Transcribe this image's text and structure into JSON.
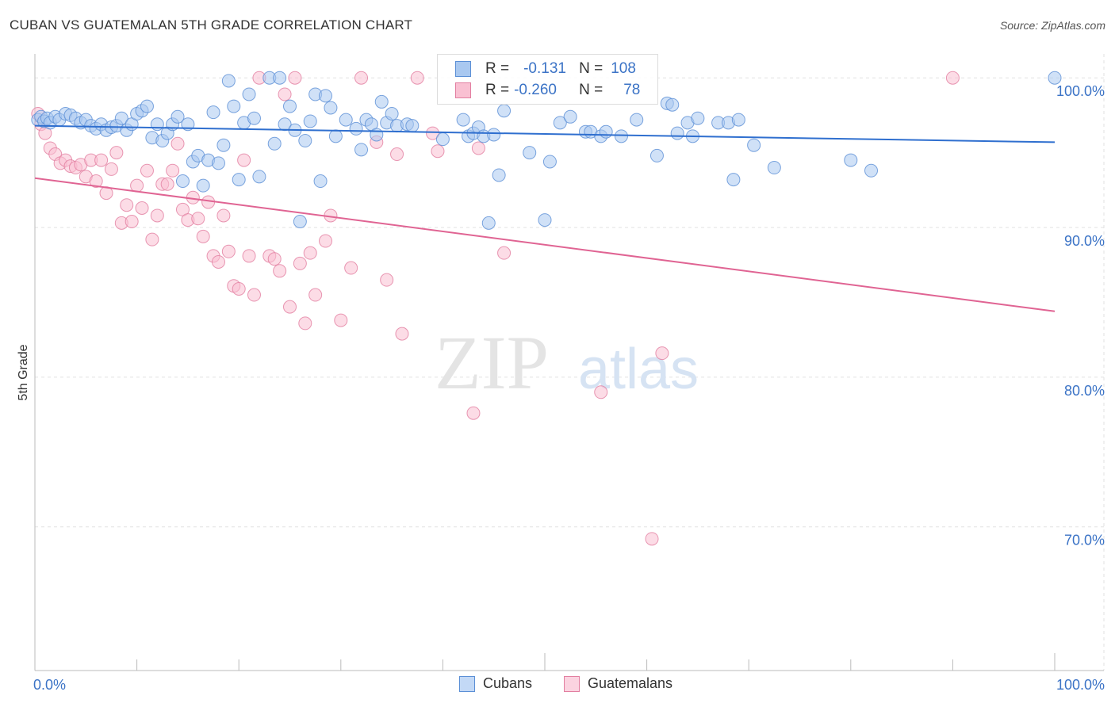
{
  "title": "CUBAN VS GUATEMALAN 5TH GRADE CORRELATION CHART",
  "source": "Source: ZipAtlas.com",
  "watermark": {
    "zip": "ZIP",
    "atlas": "atlas"
  },
  "legend": {
    "r_label": "R =",
    "n_label": "N =",
    "rows": [
      {
        "name": "Cubans",
        "r": "-0.131",
        "n": "108",
        "fill": "#a9c8f0",
        "stroke": "#5b8fd6"
      },
      {
        "name": "Guatemalans",
        "r": "-0.260",
        "n": "78",
        "fill": "#f9c0d2",
        "stroke": "#e27ea0"
      }
    ]
  },
  "chart_data": {
    "type": "scatter",
    "title": "CUBAN VS GUATEMALAN 5TH GRADE CORRELATION CHART",
    "xlabel": "",
    "ylabel": "5th Grade",
    "xlim": [
      0,
      100
    ],
    "ylim": [
      60.4,
      101.6
    ],
    "x_tick_labels": [
      "0.0%",
      "100.0%"
    ],
    "y_ticks": [
      100,
      90,
      80,
      70
    ],
    "y_tick_labels": [
      "100.0%",
      "90.0%",
      "80.0%",
      "70.0%"
    ],
    "grid": true,
    "series": [
      {
        "name": "Cubans",
        "color": "#5b8fd6",
        "fill": "#a9c8f0",
        "trend": {
          "x": [
            0,
            100
          ],
          "y": [
            96.8,
            95.7
          ]
        },
        "points": [
          [
            0.3,
            97.2
          ],
          [
            0.6,
            97.4
          ],
          [
            0.9,
            97.1
          ],
          [
            1.2,
            97.3
          ],
          [
            1.5,
            97.0
          ],
          [
            2.0,
            97.4
          ],
          [
            2.4,
            97.2
          ],
          [
            3.0,
            97.6
          ],
          [
            3.5,
            97.5
          ],
          [
            4.0,
            97.3
          ],
          [
            4.5,
            97.0
          ],
          [
            5.0,
            97.2
          ],
          [
            5.5,
            96.8
          ],
          [
            6.0,
            96.6
          ],
          [
            6.5,
            96.9
          ],
          [
            7.0,
            96.5
          ],
          [
            7.5,
            96.7
          ],
          [
            8.0,
            96.8
          ],
          [
            8.5,
            97.3
          ],
          [
            9.0,
            96.5
          ],
          [
            9.5,
            96.9
          ],
          [
            10.0,
            97.6
          ],
          [
            10.5,
            97.8
          ],
          [
            11.0,
            98.1
          ],
          [
            11.5,
            96.0
          ],
          [
            12.0,
            96.9
          ],
          [
            12.5,
            95.8
          ],
          [
            13.0,
            96.3
          ],
          [
            13.5,
            96.9
          ],
          [
            14.0,
            97.4
          ],
          [
            14.5,
            93.1
          ],
          [
            15.0,
            96.9
          ],
          [
            15.5,
            94.4
          ],
          [
            16.0,
            94.8
          ],
          [
            16.5,
            92.8
          ],
          [
            17.0,
            94.5
          ],
          [
            17.5,
            97.7
          ],
          [
            18.0,
            94.3
          ],
          [
            18.5,
            95.5
          ],
          [
            19.0,
            99.8
          ],
          [
            19.5,
            98.1
          ],
          [
            20.0,
            93.2
          ],
          [
            20.5,
            97.0
          ],
          [
            21.0,
            98.9
          ],
          [
            21.5,
            97.3
          ],
          [
            22.0,
            93.4
          ],
          [
            23.0,
            100.0
          ],
          [
            23.5,
            95.6
          ],
          [
            24.0,
            100.0
          ],
          [
            24.5,
            96.9
          ],
          [
            25.0,
            98.1
          ],
          [
            25.5,
            96.5
          ],
          [
            26.0,
            90.4
          ],
          [
            26.5,
            95.8
          ],
          [
            27.0,
            97.1
          ],
          [
            27.5,
            98.9
          ],
          [
            28.0,
            93.1
          ],
          [
            28.5,
            98.8
          ],
          [
            29.0,
            98.0
          ],
          [
            29.5,
            96.1
          ],
          [
            30.5,
            97.2
          ],
          [
            31.5,
            96.6
          ],
          [
            32.0,
            95.2
          ],
          [
            32.5,
            97.2
          ],
          [
            33.0,
            96.9
          ],
          [
            33.5,
            96.2
          ],
          [
            34.0,
            98.4
          ],
          [
            34.5,
            97.0
          ],
          [
            35.0,
            97.6
          ],
          [
            35.5,
            96.8
          ],
          [
            36.5,
            96.9
          ],
          [
            37.0,
            96.8
          ],
          [
            40.0,
            95.9
          ],
          [
            42.0,
            97.2
          ],
          [
            42.5,
            96.1
          ],
          [
            43.0,
            96.3
          ],
          [
            43.5,
            96.7
          ],
          [
            44.0,
            96.1
          ],
          [
            44.5,
            90.3
          ],
          [
            45.0,
            96.2
          ],
          [
            45.5,
            93.5
          ],
          [
            46.0,
            97.8
          ],
          [
            48.5,
            95.0
          ],
          [
            50.0,
            90.5
          ],
          [
            50.5,
            94.4
          ],
          [
            51.5,
            97.0
          ],
          [
            52.5,
            97.4
          ],
          [
            54.0,
            96.4
          ],
          [
            54.5,
            96.4
          ],
          [
            55.5,
            96.1
          ],
          [
            56.0,
            96.4
          ],
          [
            57.5,
            96.1
          ],
          [
            59.0,
            97.2
          ],
          [
            61.0,
            94.8
          ],
          [
            62.0,
            98.3
          ],
          [
            62.5,
            98.2
          ],
          [
            63.0,
            96.3
          ],
          [
            64.0,
            97.0
          ],
          [
            64.5,
            96.1
          ],
          [
            65.0,
            97.3
          ],
          [
            67.0,
            97.0
          ],
          [
            68.0,
            97.0
          ],
          [
            68.5,
            93.2
          ],
          [
            69.0,
            97.2
          ],
          [
            70.5,
            95.5
          ],
          [
            72.5,
            94.0
          ],
          [
            80.0,
            94.5
          ],
          [
            82.0,
            93.8
          ],
          [
            100.0,
            100.0
          ]
        ]
      },
      {
        "name": "Guatemalans",
        "color": "#e27ea0",
        "fill": "#f9c0d2",
        "trend": {
          "x": [
            0,
            100
          ],
          "y": [
            93.3,
            84.4
          ]
        },
        "points": [
          [
            0.3,
            97.6
          ],
          [
            0.6,
            96.9
          ],
          [
            1.0,
            96.3
          ],
          [
            1.5,
            95.3
          ],
          [
            2.0,
            94.9
          ],
          [
            2.5,
            94.3
          ],
          [
            3.0,
            94.5
          ],
          [
            3.5,
            94.1
          ],
          [
            4.0,
            94.0
          ],
          [
            4.5,
            94.2
          ],
          [
            5.0,
            93.4
          ],
          [
            5.5,
            94.5
          ],
          [
            6.0,
            93.1
          ],
          [
            6.5,
            94.5
          ],
          [
            7.0,
            92.3
          ],
          [
            7.5,
            93.9
          ],
          [
            8.0,
            95.0
          ],
          [
            8.5,
            90.3
          ],
          [
            9.0,
            91.5
          ],
          [
            9.5,
            90.4
          ],
          [
            10.0,
            92.8
          ],
          [
            10.5,
            91.3
          ],
          [
            11.0,
            93.8
          ],
          [
            11.5,
            89.2
          ],
          [
            12.0,
            90.8
          ],
          [
            12.5,
            92.9
          ],
          [
            13.0,
            92.9
          ],
          [
            13.5,
            93.8
          ],
          [
            14.0,
            95.6
          ],
          [
            14.5,
            91.2
          ],
          [
            15.0,
            90.5
          ],
          [
            15.5,
            92.0
          ],
          [
            16.0,
            90.6
          ],
          [
            16.5,
            89.4
          ],
          [
            17.0,
            91.7
          ],
          [
            17.5,
            88.1
          ],
          [
            18.0,
            87.7
          ],
          [
            18.5,
            90.8
          ],
          [
            19.0,
            88.4
          ],
          [
            19.5,
            86.1
          ],
          [
            20.0,
            85.9
          ],
          [
            20.5,
            94.5
          ],
          [
            21.0,
            88.1
          ],
          [
            21.5,
            85.5
          ],
          [
            22.0,
            100.0
          ],
          [
            23.0,
            88.1
          ],
          [
            23.5,
            87.9
          ],
          [
            24.0,
            87.1
          ],
          [
            24.5,
            98.9
          ],
          [
            25.0,
            84.7
          ],
          [
            25.5,
            100.0
          ],
          [
            26.0,
            87.6
          ],
          [
            26.5,
            83.6
          ],
          [
            27.0,
            88.3
          ],
          [
            27.5,
            85.5
          ],
          [
            28.5,
            89.1
          ],
          [
            29.0,
            90.8
          ],
          [
            30.0,
            83.8
          ],
          [
            31.0,
            87.3
          ],
          [
            32.0,
            100.0
          ],
          [
            33.5,
            95.7
          ],
          [
            34.5,
            86.5
          ],
          [
            35.5,
            94.9
          ],
          [
            36.0,
            82.9
          ],
          [
            37.5,
            100.0
          ],
          [
            39.0,
            96.3
          ],
          [
            39.5,
            95.1
          ],
          [
            43.0,
            77.6
          ],
          [
            43.5,
            95.3
          ],
          [
            46.0,
            88.3
          ],
          [
            55.5,
            79.0
          ],
          [
            60.5,
            69.2
          ],
          [
            61.5,
            81.6
          ],
          [
            90.0,
            100.0
          ]
        ]
      }
    ]
  }
}
